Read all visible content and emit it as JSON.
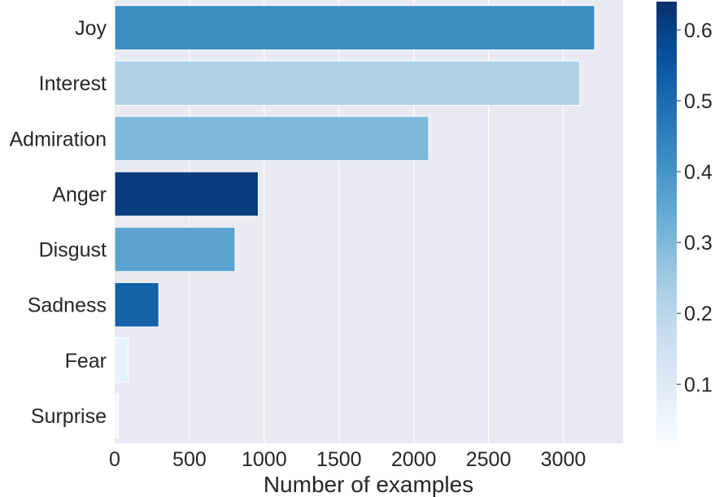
{
  "chart_data": {
    "type": "bar",
    "orientation": "horizontal",
    "title": "",
    "xlabel": "Number of examples",
    "ylabel": "",
    "categories": [
      "Joy",
      "Interest",
      "Admiration",
      "Anger",
      "Disgust",
      "Sadness",
      "Fear",
      "Surprise"
    ],
    "values": [
      3210,
      3110,
      2100,
      960,
      805,
      295,
      90,
      25
    ],
    "color_values": [
      0.42,
      0.22,
      0.3,
      0.61,
      0.36,
      0.52,
      0.07,
      0.03
    ],
    "xlim": [
      0,
      3400
    ],
    "x_ticks": [
      "0",
      "500",
      "1000",
      "1500",
      "2000",
      "2500",
      "3000"
    ],
    "x_tick_values": [
      0,
      500,
      1000,
      1500,
      2000,
      2500,
      3000
    ],
    "grid": true,
    "colorbar": {
      "colormap": "Blues",
      "range": [
        0.02,
        0.64
      ],
      "ticks": [
        "0.1",
        "0.2",
        "0.3",
        "0.4",
        "0.5",
        "0.6"
      ],
      "tick_values": [
        0.1,
        0.2,
        0.3,
        0.4,
        0.5,
        0.6
      ]
    }
  }
}
